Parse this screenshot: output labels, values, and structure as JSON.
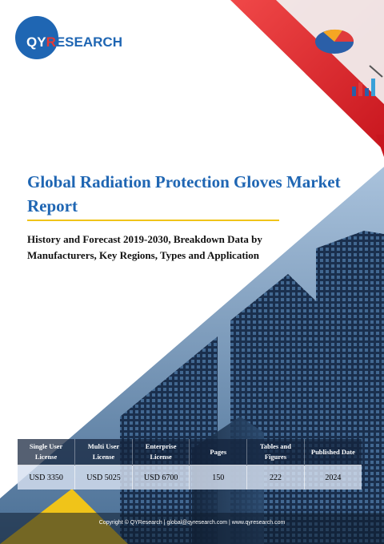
{
  "logo": {
    "qy": "QY",
    "r": "R",
    "research": "ESEARCH"
  },
  "report": {
    "title": "Global Radiation Protection Gloves Market Report",
    "subtitle": "History and Forecast 2019-2030, Breakdown Data by Manufacturers, Key Regions, Types and Application"
  },
  "license_table": {
    "headers": [
      "Single User License",
      "Multi User License",
      "Enterprise License",
      "Pages",
      "Tables and Figures",
      "Published Date"
    ],
    "values": [
      "USD 3350",
      "USD 5025",
      "USD 6700",
      "150",
      "222",
      "2024"
    ]
  },
  "footer": {
    "text": "Copyright © QYResearch | global@qyresearch.com | www.qyresearch.com"
  },
  "colors": {
    "brand_blue": "#1f66b3",
    "accent_red": "#e53935",
    "accent_yellow": "#f0c419"
  }
}
